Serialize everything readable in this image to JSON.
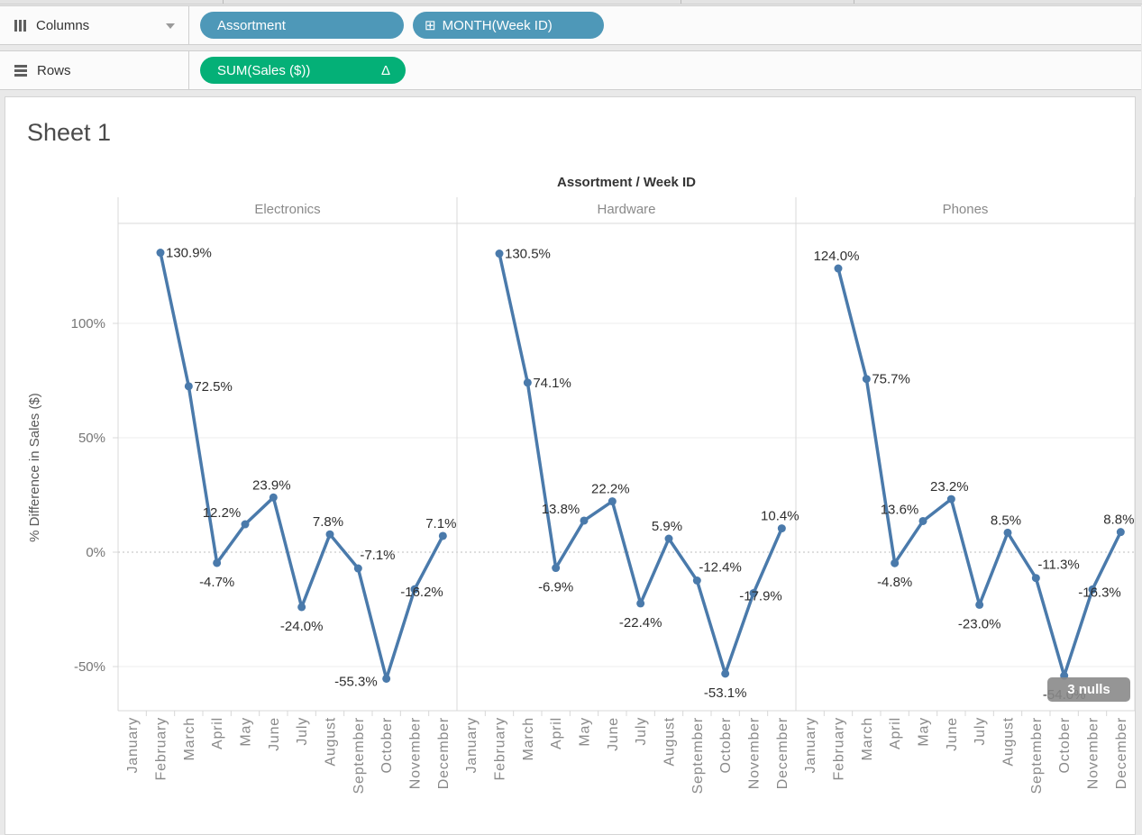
{
  "shelves": {
    "columns": {
      "label": "Columns",
      "pills": [
        {
          "text": "Assortment"
        },
        {
          "text": "MONTH(Week ID)",
          "expand_icon": "⊞"
        }
      ]
    },
    "rows": {
      "label": "Rows",
      "pills": [
        {
          "text": "SUM(Sales ($))",
          "delta_icon": "Δ"
        }
      ]
    }
  },
  "sheet_title": "Sheet 1",
  "chart_data": {
    "type": "line",
    "title": "Assortment / Week ID",
    "ylabel": "% Difference in Sales ($)",
    "x_categories": [
      "January",
      "February",
      "March",
      "April",
      "May",
      "June",
      "July",
      "August",
      "September",
      "October",
      "November",
      "December"
    ],
    "y_axis": {
      "ticks": [
        100,
        50,
        0,
        -50
      ],
      "tick_labels": [
        "100%",
        "50%",
        "0%",
        "-50%"
      ],
      "range": [
        -69,
        144
      ],
      "zero_line": "dashed",
      "grid": "horizontal"
    },
    "series_color": "#4a7aab",
    "label_color": "#2e2e2e",
    "panels": [
      {
        "name": "Electronics",
        "values": [
          null,
          130.9,
          72.5,
          -4.7,
          12.2,
          23.9,
          -24.0,
          7.8,
          -7.1,
          -55.3,
          -16.2,
          7.1
        ],
        "point_labels": [
          "",
          "130.9%",
          "72.5%",
          "-4.7%",
          "12.2%",
          "23.9%",
          "-24.0%",
          "7.8%",
          "-7.1%",
          "-55.3%",
          "-16.2%",
          "7.1%"
        ],
        "label_pos": [
          "",
          "right",
          "right",
          "below",
          "above-left",
          "above",
          "below",
          "above",
          "above-right",
          "left",
          "beside",
          "above"
        ]
      },
      {
        "name": "Hardware",
        "values": [
          null,
          130.5,
          74.1,
          -6.9,
          13.8,
          22.2,
          -22.4,
          5.9,
          -12.4,
          -53.1,
          -17.9,
          10.4
        ],
        "point_labels": [
          "",
          "130.5%",
          "74.1%",
          "-6.9%",
          "13.8%",
          "22.2%",
          "-22.4%",
          "5.9%",
          "-12.4%",
          "-53.1%",
          "-17.9%",
          "10.4%"
        ],
        "label_pos": [
          "",
          "right",
          "right",
          "below",
          "above-left",
          "above",
          "below",
          "above",
          "above-right",
          "below",
          "beside",
          "above"
        ]
      },
      {
        "name": "Phones",
        "values": [
          null,
          124.0,
          75.7,
          -4.8,
          13.6,
          23.2,
          -23.0,
          8.5,
          -11.3,
          -54.0,
          -16.3,
          8.8
        ],
        "point_labels": [
          "",
          "124.0%",
          "75.7%",
          "-4.8%",
          "13.6%",
          "23.2%",
          "-23.0%",
          "8.5%",
          "-11.3%",
          "-54.0%",
          "-16.3%",
          "8.8%"
        ],
        "label_pos": [
          "",
          "above",
          "right",
          "below",
          "above-left",
          "above",
          "below",
          "above",
          "above-right",
          "below",
          "beside",
          "above"
        ]
      }
    ],
    "annotation": {
      "text": "3 nulls"
    }
  }
}
